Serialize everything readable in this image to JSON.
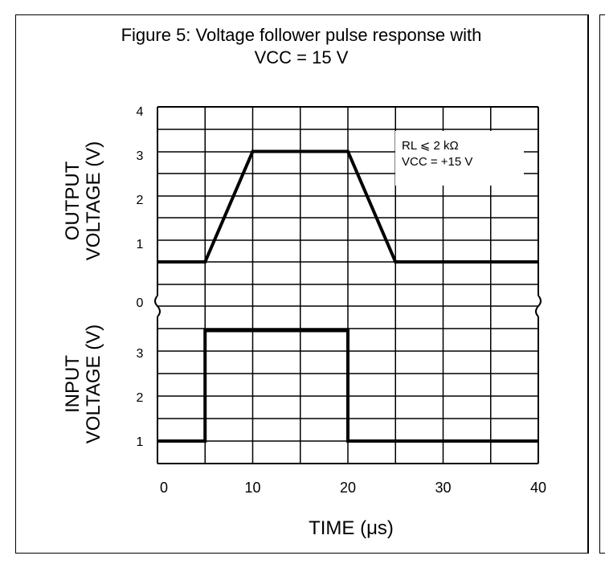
{
  "title": "Figure 5: Voltage follower pulse response with\nVCC = 15 V",
  "chart_data": {
    "type": "line",
    "xlabel": "TIME (μs)",
    "xlim": [
      0,
      40
    ],
    "x_ticks": [
      "0",
      "10",
      "20",
      "30",
      "40"
    ],
    "annotation": [
      "RL ⩽ 2 kΩ",
      "VCC = +15 V"
    ],
    "panels": [
      {
        "ylabel": [
          "OUTPUT",
          "VOLTAGE (V)"
        ],
        "ylim": [
          0,
          4.6
        ],
        "y_ticks": [
          "0",
          "1",
          "2",
          "3",
          "4"
        ],
        "series": [
          {
            "x": [
              0,
              5,
              10,
              20,
              25,
              40
            ],
            "y": [
              1,
              1,
              3.5,
              3.5,
              1,
              1
            ]
          }
        ]
      },
      {
        "ylabel": [
          "INPUT",
          "VOLTAGE (V)"
        ],
        "ylim": [
          0.5,
          4
        ],
        "y_ticks": [
          "1",
          "2",
          "3"
        ],
        "series": [
          {
            "x": [
              0,
              5,
              5,
              20,
              20,
              40
            ],
            "y": [
              1,
              1,
              3.5,
              3.5,
              1,
              1
            ]
          }
        ]
      }
    ]
  }
}
